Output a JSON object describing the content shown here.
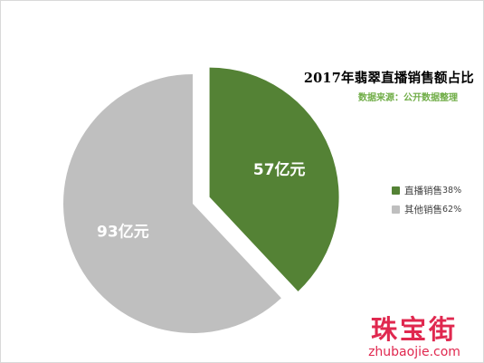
{
  "chart_data": {
    "type": "pie",
    "title": "2017年翡翠直播销售额占比",
    "subtitle": "数据来源：公开数据整理",
    "slices": [
      {
        "name": "直播销售",
        "value": 57,
        "value_label": "57亿元",
        "percent_label": "38%",
        "color": "#548235",
        "exploded": true
      },
      {
        "name": "其他销售",
        "value": 93,
        "value_label": "93亿元",
        "percent_label": "62%",
        "color": "#bfbfbf",
        "exploded": false
      }
    ],
    "legend_position": "right"
  },
  "watermark": {
    "name": "珠宝街",
    "domain": "zhubaojie.com"
  }
}
